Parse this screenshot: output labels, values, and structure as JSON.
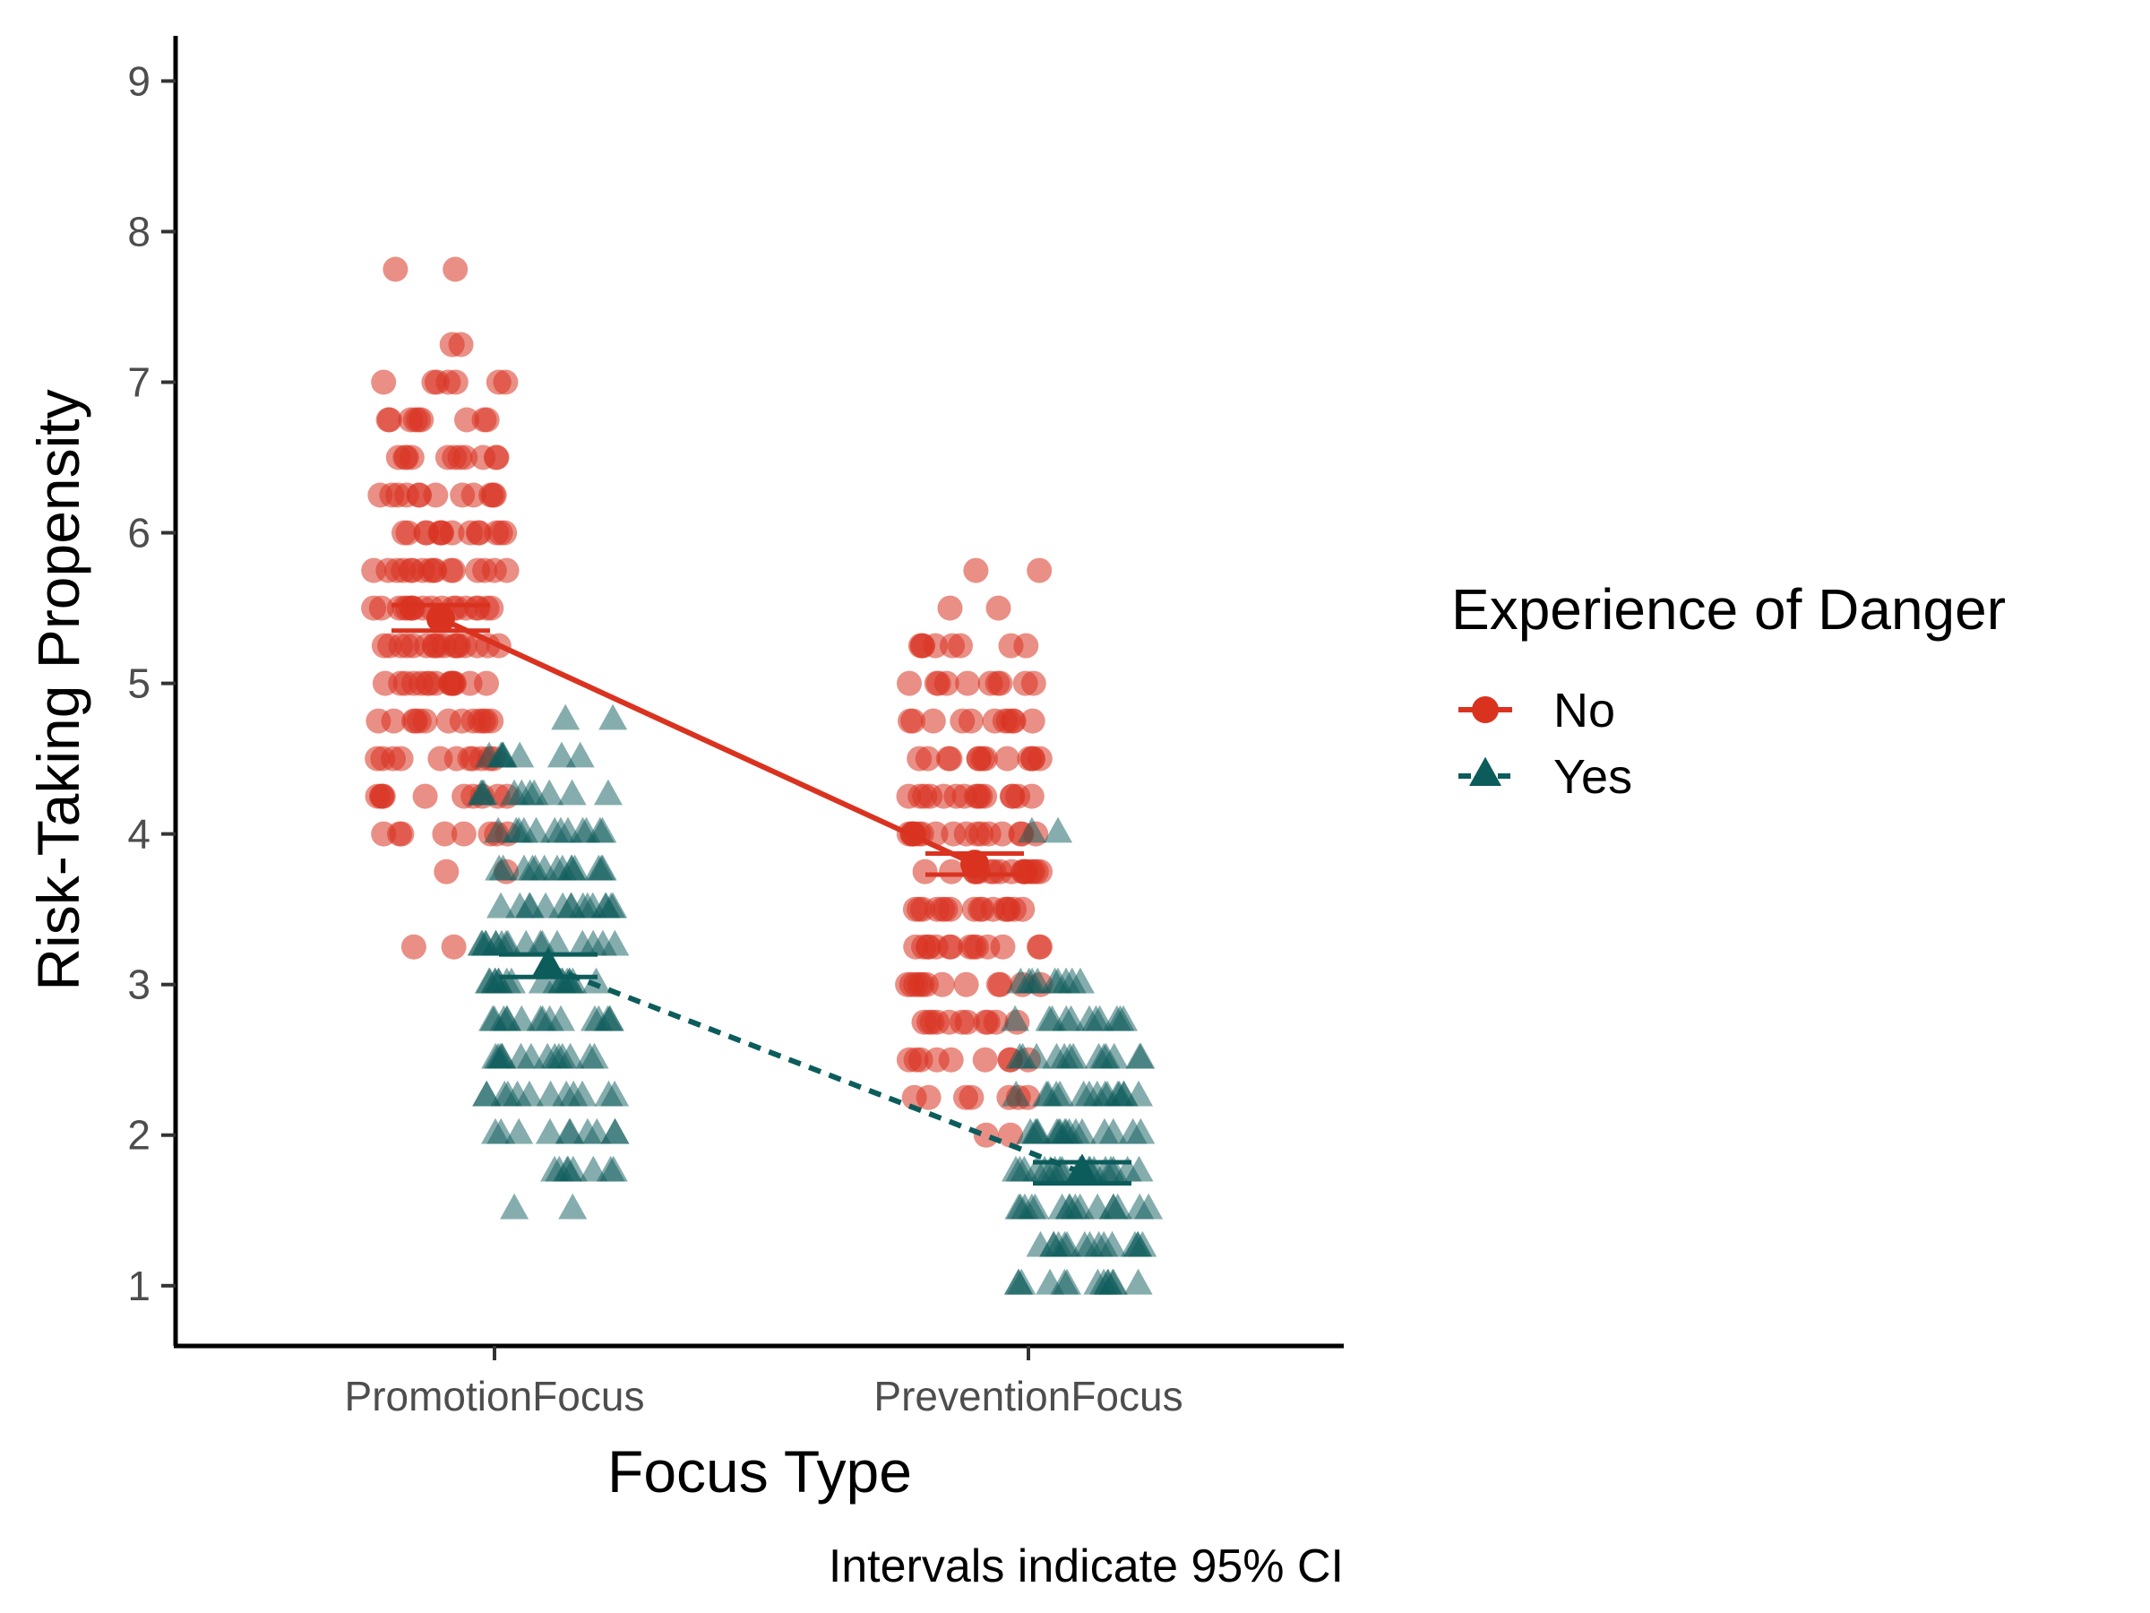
{
  "chart_data": {
    "type": "scatter",
    "xlabel": "Focus Type",
    "ylabel": "Risk-Taking Propensity",
    "caption": "Intervals indicate 95% CI",
    "categories": [
      "PromotionFocus",
      "PreventionFocus"
    ],
    "ylim": [
      0.6,
      9.3
    ],
    "yticks": [
      1,
      2,
      3,
      4,
      5,
      6,
      7,
      8,
      9
    ],
    "grid": false,
    "legend": {
      "title": "Experience of Danger",
      "position": "right",
      "items": [
        "No",
        "Yes"
      ]
    },
    "series": [
      {
        "name": "No",
        "color": "#d93320",
        "marker": "circle",
        "line_style": "solid",
        "means": [
          5.43,
          3.8
        ],
        "ci": [
          [
            5.35,
            5.52
          ],
          [
            3.73,
            3.87
          ]
        ],
        "levels": [
          [
            3.25,
            3.75,
            4.0,
            4.25,
            4.5,
            4.75,
            5.0,
            5.25,
            5.5,
            5.75,
            6.0,
            6.25,
            6.5,
            6.75,
            7.0,
            7.25,
            7.75
          ],
          [
            2.0,
            2.25,
            2.5,
            2.75,
            3.0,
            3.25,
            3.5,
            3.75,
            4.0,
            4.25,
            4.5,
            4.75,
            5.0,
            5.25,
            5.5,
            5.75
          ]
        ]
      },
      {
        "name": "Yes",
        "color": "#0d5c5c",
        "marker": "triangle",
        "line_style": "dashed",
        "means": [
          3.12,
          1.75
        ],
        "ci": [
          [
            3.05,
            3.2
          ],
          [
            1.68,
            1.82
          ]
        ],
        "levels": [
          [
            1.5,
            1.75,
            2.0,
            2.25,
            2.5,
            2.75,
            3.0,
            3.25,
            3.5,
            3.75,
            4.0,
            4.25,
            4.5,
            4.75
          ],
          [
            1.0,
            1.25,
            1.5,
            1.75,
            2.0,
            2.25,
            2.5,
            2.75,
            3.0,
            4.0
          ]
        ]
      }
    ]
  }
}
